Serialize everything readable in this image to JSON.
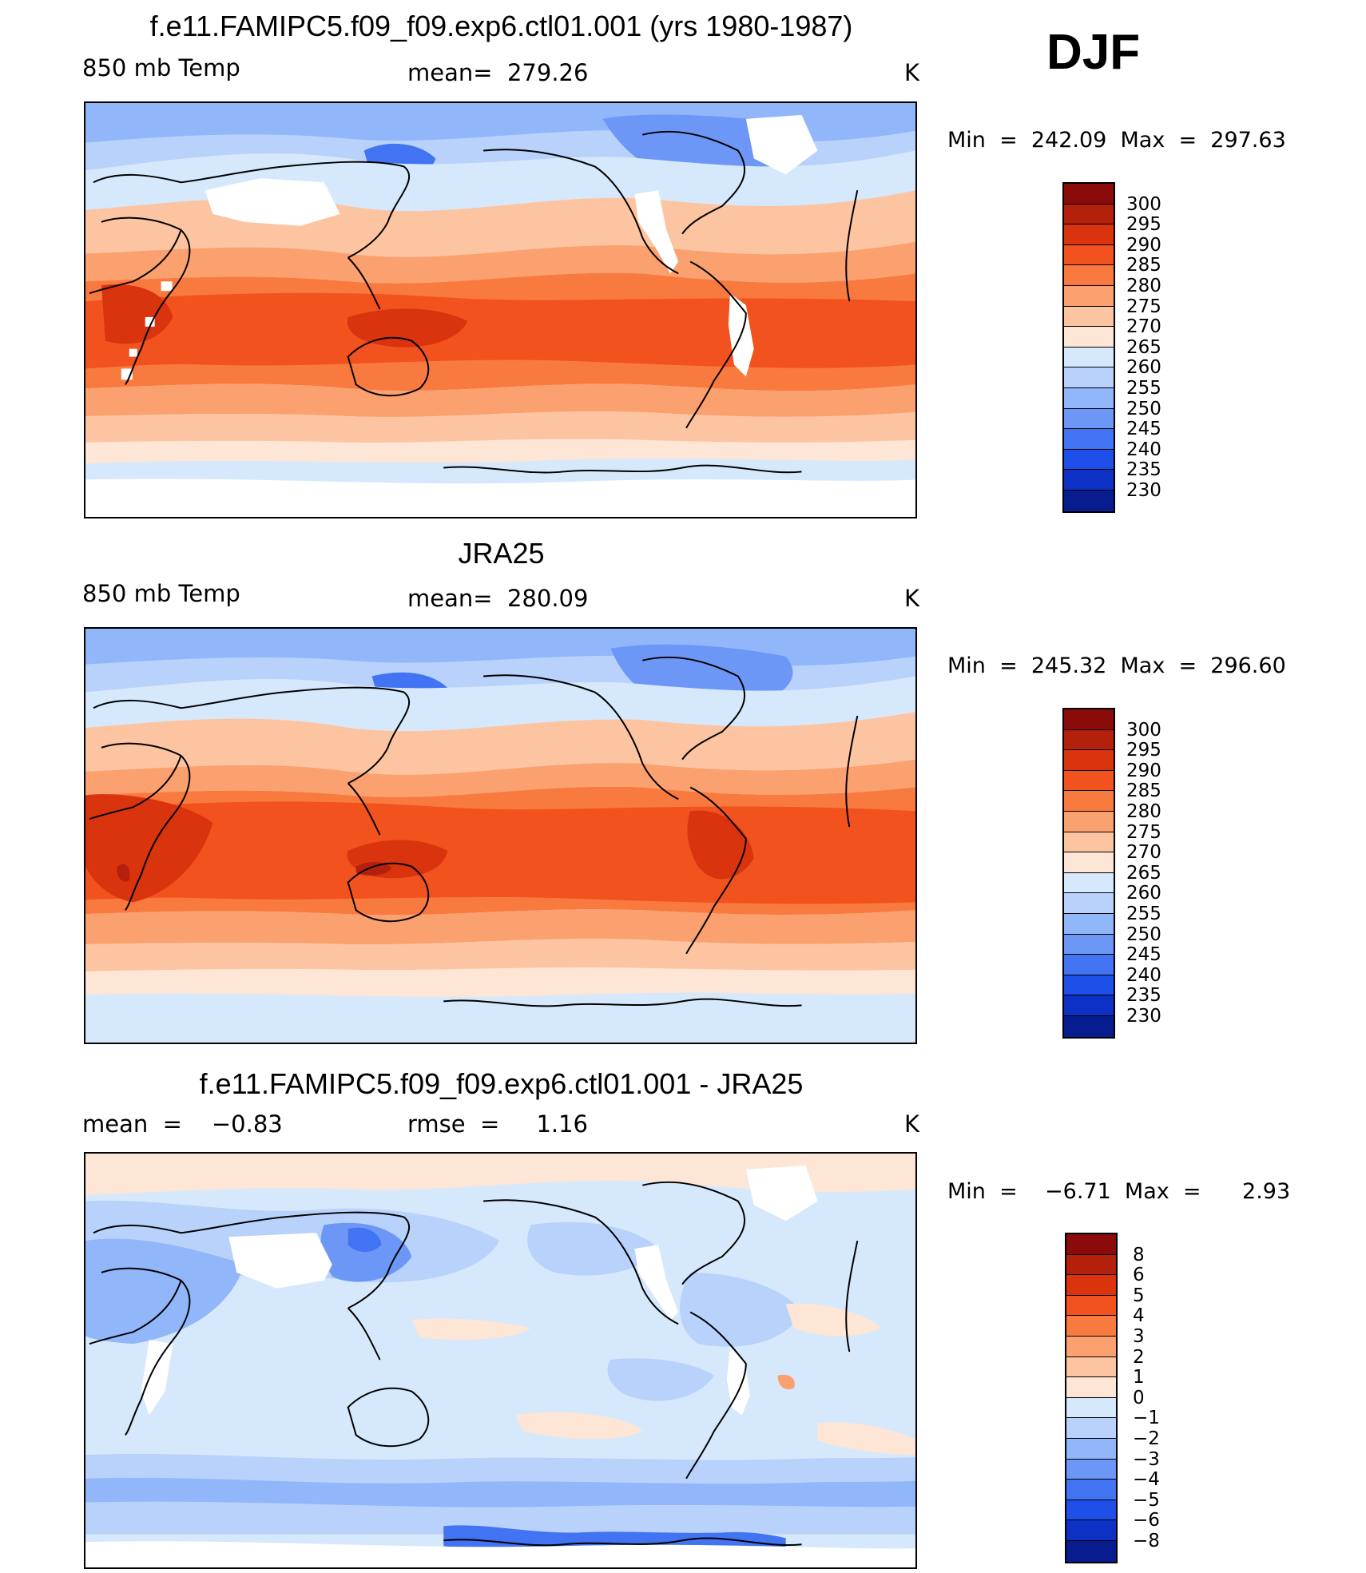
{
  "season": "DJF",
  "panels": [
    {
      "title": "f.e11.FAMIPC5.f09_f09.exp6.ctl01.001 (yrs 1980-1987)",
      "left_label": "850 mb Temp",
      "center_label": "mean=  279.26",
      "units": "K",
      "minmax": "Min  =  242.09  Max  =  297.63"
    },
    {
      "title": "JRA25",
      "left_label": "850 mb Temp",
      "center_label": "mean=  280.09",
      "units": "K",
      "minmax": "Min  =  245.32  Max  =  296.60"
    },
    {
      "title": "f.e11.FAMIPC5.f09_f09.exp6.ctl01.001 - JRA25",
      "left_label": "mean  =    −0.83",
      "center_label": "rmse  =     1.16",
      "units": "K",
      "minmax": "Min  =    −6.71  Max  =      2.93"
    }
  ],
  "colorbars": {
    "abs": {
      "ticks": [
        "300",
        "295",
        "290",
        "285",
        "280",
        "275",
        "270",
        "265",
        "260",
        "255",
        "250",
        "245",
        "240",
        "235",
        "230"
      ],
      "colors": [
        "#8b0a0a",
        "#b3200c",
        "#d9340d",
        "#f2521e",
        "#f97a3f",
        "#fba06f",
        "#fdc4a2",
        "#fde6d5",
        "#d6e8fb",
        "#b8d2fb",
        "#91b6fa",
        "#6c97f6",
        "#4173f2",
        "#1e4fe8",
        "#0c31c4",
        "#071d8f"
      ]
    },
    "diff": {
      "ticks": [
        "8",
        "6",
        "5",
        "4",
        "3",
        "2",
        "1",
        "0",
        "−1",
        "−2",
        "−3",
        "−4",
        "−5",
        "−6",
        "−8"
      ],
      "colors": [
        "#8b0a0a",
        "#b3200c",
        "#d9340d",
        "#f2521e",
        "#f97a3f",
        "#fba06f",
        "#fdc4a2",
        "#fde6d5",
        "#d6e8fb",
        "#b8d2fb",
        "#91b6fa",
        "#6c97f6",
        "#4173f2",
        "#1e4fe8",
        "#0c31c4",
        "#071d8f"
      ]
    }
  }
}
